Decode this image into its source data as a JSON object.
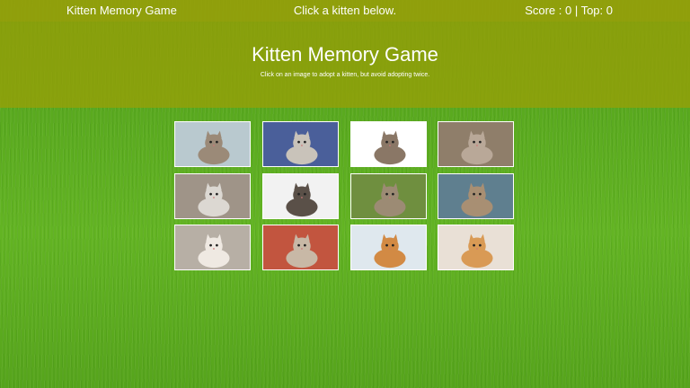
{
  "navbar": {
    "brand": "Kitten Memory Game",
    "message": "Click a kitten below.",
    "score": "Score : 0 | Top: 0"
  },
  "header": {
    "title": "Kitten Memory Game",
    "subtitle": "Click on an image to adopt a kitten, but avoid adopting twice."
  },
  "colors": {
    "bar": "#96a00a",
    "grass": "#5aaa1f",
    "text": "#ffffff"
  },
  "kittens": [
    {
      "name": "kitten-basket-group",
      "bg": "#b9c9cf",
      "cat": "#9b8a78"
    },
    {
      "name": "kitten-gray-tabby-blue",
      "bg": "#4a5f9a",
      "cat": "#c9c3ba"
    },
    {
      "name": "kitten-tabby-white-bg",
      "bg": "#ffffff",
      "cat": "#8a7766"
    },
    {
      "name": "kitten-pair-basket",
      "bg": "#8f7e6a",
      "cat": "#b9a898"
    },
    {
      "name": "kitten-white-gray-hand",
      "bg": "#9f9488",
      "cat": "#dcd8d2"
    },
    {
      "name": "kitten-trio-white",
      "bg": "#f2f2f2",
      "cat": "#5a5048"
    },
    {
      "name": "kitten-tabby-grass",
      "bg": "#6f8f3f",
      "cat": "#9c8b74"
    },
    {
      "name": "kitten-hand-held",
      "bg": "#5f7f8f",
      "cat": "#a88f73"
    },
    {
      "name": "kitten-siamese",
      "bg": "#b7afa5",
      "cat": "#efe9e2"
    },
    {
      "name": "kitten-paws-red",
      "bg": "#c2553f",
      "cat": "#c8b8a6"
    },
    {
      "name": "kitten-orange-playing",
      "bg": "#dfe8ee",
      "cat": "#d28a44"
    },
    {
      "name": "kitten-orange-gray-cuddle",
      "bg": "#e9e0d6",
      "cat": "#d99a55"
    }
  ]
}
